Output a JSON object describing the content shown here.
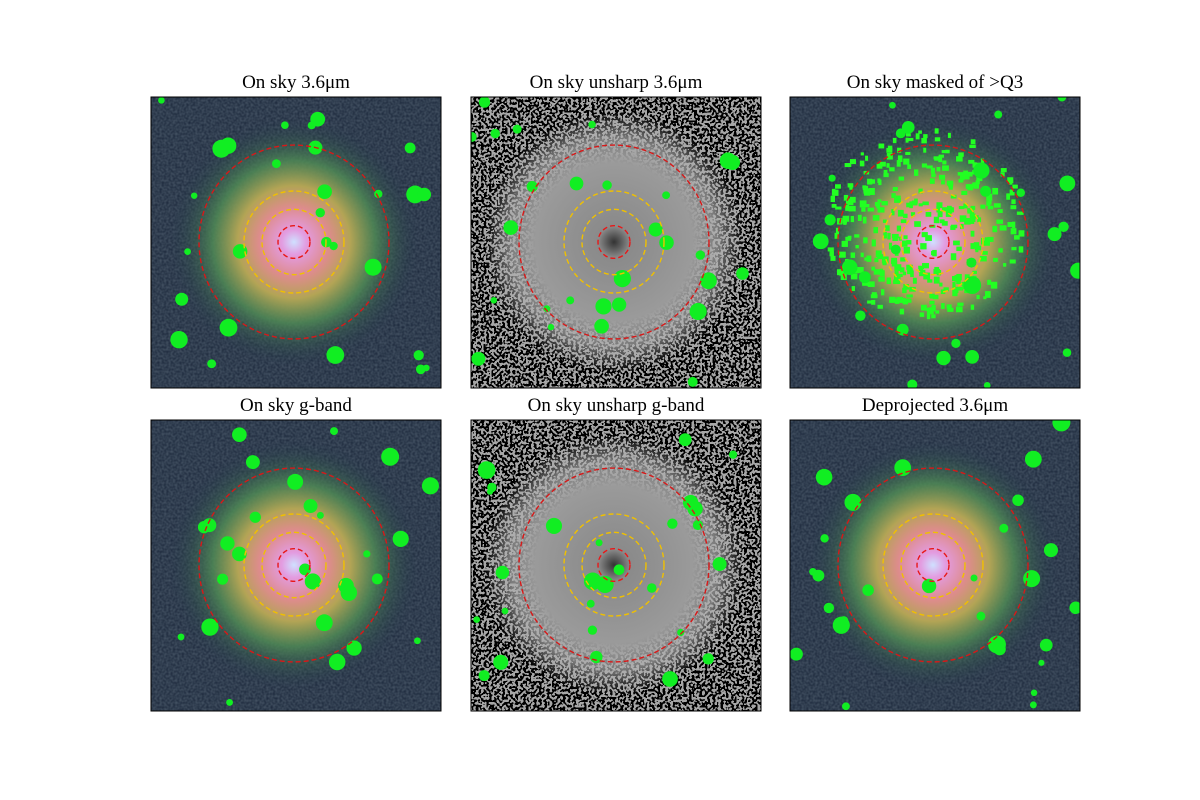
{
  "panels": [
    {
      "title": "On sky 3.6μm"
    },
    {
      "title": "On sky unsharp 3.6μm"
    },
    {
      "title": "On sky masked of >Q3"
    },
    {
      "title": "On sky g-band"
    },
    {
      "title": "On sky unsharp g-band"
    },
    {
      "title": "Deprojected 3.6μm"
    }
  ]
}
